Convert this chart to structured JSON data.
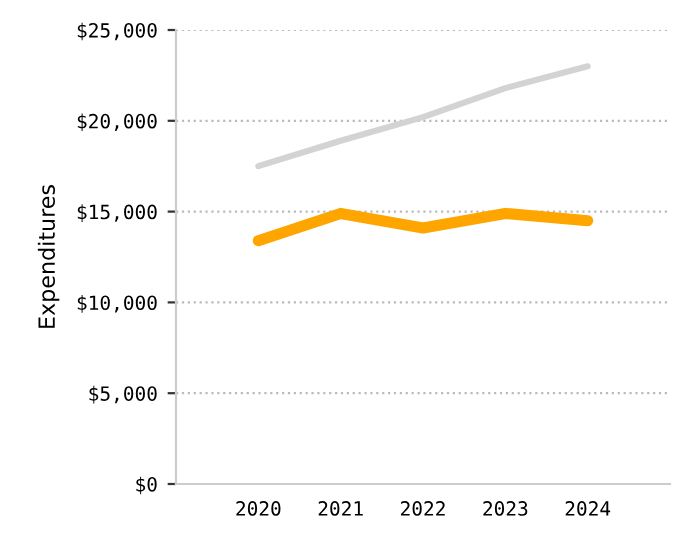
{
  "chart_data": {
    "type": "line",
    "ylabel": "Expenditures",
    "categories": [
      "2020",
      "2021",
      "2022",
      "2023",
      "2024"
    ],
    "series": [
      {
        "color": "#d3d3d3",
        "values": [
          17500,
          18900,
          20200,
          21800,
          23000
        ]
      },
      {
        "color": "#ffa500",
        "values": [
          13400,
          14900,
          14100,
          14900,
          14500
        ]
      }
    ],
    "ylim": [
      0,
      25000
    ],
    "yticks": [
      {
        "value": 0,
        "label": "$0"
      },
      {
        "value": 5000,
        "label": "$5,000"
      },
      {
        "value": 10000,
        "label": "$10,000"
      },
      {
        "value": 15000,
        "label": "$15,000"
      },
      {
        "value": 20000,
        "label": "$20,000"
      },
      {
        "value": 25000,
        "label": "$25,000"
      }
    ],
    "grid": "y",
    "marker": "none",
    "line_style": "solid"
  }
}
